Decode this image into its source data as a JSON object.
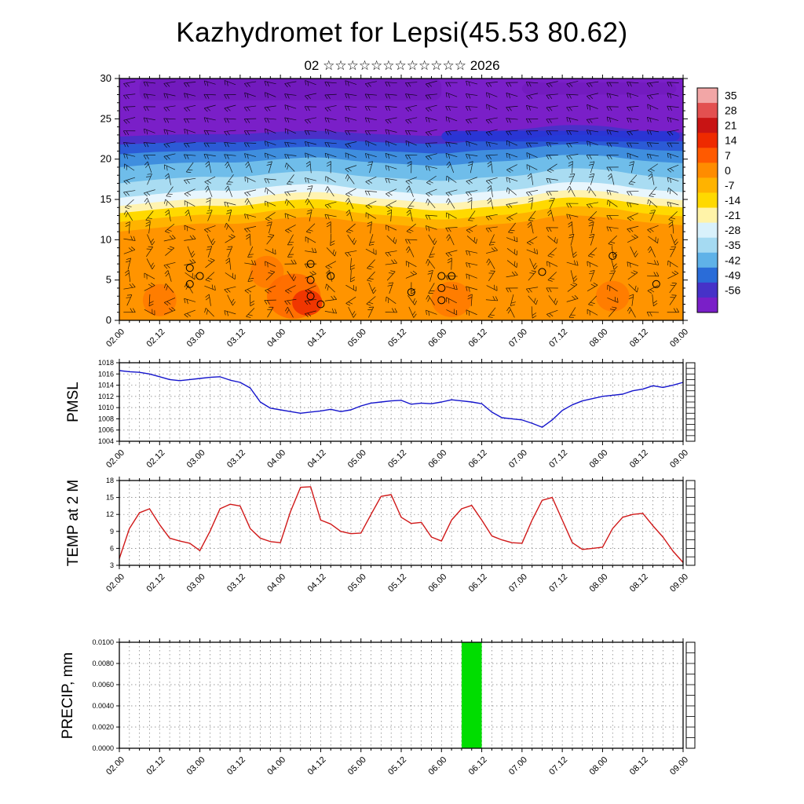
{
  "header": {
    "title": "Kazhydromet for Lepsi(45.53 80.62)",
    "subtitle": "02 ☆☆☆☆☆☆☆☆☆☆☆☆ 2026"
  },
  "time_axis": {
    "major_labels": [
      "02.00",
      "02.12",
      "03.00",
      "03.12",
      "04.00",
      "04.12",
      "05.00",
      "05.12",
      "06.00",
      "06.12",
      "07.00",
      "07.12",
      "08.00",
      "08.12",
      "09.00"
    ],
    "total_hours": 168,
    "major_step_hours": 12,
    "minor_step_hours": 3
  },
  "chart_data": [
    {
      "type": "heatmap",
      "name": "temp-wind-cross-section",
      "description": "Upper-air temperature cross-section (height 0-30) with wind barbs over time",
      "ylim": [
        0,
        30
      ],
      "yticks": [
        0,
        5,
        10,
        15,
        20,
        25,
        30
      ],
      "background_color": "#7A1FC8",
      "bands_top_to_bottom": [
        {
          "color": "#4B2FC8",
          "top_heights": [
            22.8,
            23.0,
            23.1,
            23.1,
            23.4,
            23.5,
            23.2,
            23.0,
            22.9,
            23.4,
            23.7,
            24.2,
            24.1,
            23.5,
            23.3
          ]
        },
        {
          "color": "#2B5BD6",
          "top_heights": [
            21.8,
            22.0,
            22.1,
            22.1,
            22.4,
            22.5,
            22.2,
            22.0,
            21.9,
            22.3,
            22.5,
            23.0,
            22.9,
            22.4,
            22.2
          ]
        },
        {
          "color": "#3F8EDE",
          "top_heights": [
            20.6,
            20.9,
            21.0,
            21.0,
            21.4,
            21.5,
            21.1,
            20.9,
            20.7,
            21.1,
            21.3,
            21.8,
            21.7,
            21.2,
            21.0
          ]
        },
        {
          "color": "#6FBDEA",
          "top_heights": [
            19.0,
            19.4,
            19.6,
            19.6,
            20.0,
            20.2,
            19.7,
            19.4,
            19.2,
            19.6,
            19.9,
            20.5,
            20.4,
            19.8,
            19.5
          ]
        },
        {
          "color": "#A9DCF2",
          "top_heights": [
            17.0,
            17.5,
            17.8,
            17.8,
            18.3,
            18.5,
            17.9,
            17.6,
            17.3,
            17.7,
            18.0,
            18.8,
            18.7,
            18.0,
            17.6
          ]
        },
        {
          "color": "#E8F6FD",
          "top_heights": [
            15.2,
            15.7,
            16.1,
            16.1,
            16.7,
            16.9,
            16.3,
            15.9,
            15.5,
            15.9,
            16.3,
            17.1,
            17.0,
            16.3,
            15.9
          ]
        },
        {
          "color": "#FFF3B0",
          "top_heights": [
            14.2,
            14.7,
            15.1,
            15.1,
            15.7,
            15.9,
            15.3,
            14.9,
            14.5,
            14.9,
            15.3,
            16.1,
            16.0,
            15.3,
            14.9
          ]
        },
        {
          "color": "#FFD900",
          "top_heights": [
            13.3,
            13.8,
            14.2,
            14.2,
            14.8,
            15.0,
            14.4,
            14.0,
            13.6,
            14.0,
            14.4,
            15.2,
            15.1,
            14.4,
            14.0
          ]
        },
        {
          "color": "#FFB300",
          "top_heights": [
            12.2,
            12.7,
            13.1,
            13.1,
            13.7,
            13.9,
            13.3,
            12.9,
            12.5,
            12.9,
            13.3,
            14.1,
            14.0,
            13.3,
            12.9
          ]
        },
        {
          "color": "#FF9400",
          "top_heights": [
            11.0,
            11.5,
            12.0,
            12.0,
            12.6,
            12.8,
            12.2,
            11.8,
            11.4,
            11.8,
            12.2,
            13.0,
            12.8,
            12.2,
            11.8
          ]
        }
      ],
      "overlays": [
        {
          "color": "#6A16B4",
          "t0": 6,
          "t1": 96,
          "h0": 27.3,
          "h1": 30,
          "opacity": 0.5
        },
        {
          "color": "#2336D6",
          "t0": 96,
          "t1": 167,
          "h0": 22.2,
          "h1": 23.5,
          "opacity": 0.85
        },
        {
          "color": "#6A16B4",
          "t0": 120,
          "t1": 166,
          "h0": 28,
          "h1": 29.5,
          "opacity": 0.45
        }
      ],
      "warm_cores": [
        {
          "t": 12,
          "h": 2.5,
          "rt": 5,
          "rh": 2.0,
          "color": "#FF7A00"
        },
        {
          "t": 44,
          "h": 6.0,
          "rt": 5,
          "rh": 2.0,
          "color": "#FF7A00"
        },
        {
          "t": 52,
          "h": 3.0,
          "rt": 8,
          "rh": 2.8,
          "color": "#FF6A00"
        },
        {
          "t": 56,
          "h": 2.2,
          "rt": 4.5,
          "rh": 1.6,
          "color": "#EE3000"
        },
        {
          "t": 99,
          "h": 2.6,
          "rt": 6,
          "rh": 2.2,
          "color": "#FF7A00"
        },
        {
          "t": 147,
          "h": 3.0,
          "rt": 5,
          "rh": 1.9,
          "color": "#FF7A00"
        }
      ],
      "calm_markers": [
        [
          21,
          6.5
        ],
        [
          21,
          4.5
        ],
        [
          24,
          5.5
        ],
        [
          57,
          7
        ],
        [
          57,
          5
        ],
        [
          57,
          3
        ],
        [
          60,
          2
        ],
        [
          63,
          5.5
        ],
        [
          87,
          3.5
        ],
        [
          96,
          5.5
        ],
        [
          96,
          4
        ],
        [
          96,
          2.5
        ],
        [
          99,
          5.5
        ],
        [
          126,
          6
        ],
        [
          147,
          8
        ],
        [
          160,
          4.5
        ]
      ],
      "colorbar": {
        "tick_labels": [
          "35",
          "28",
          "21",
          "14",
          "7",
          "0",
          "-7",
          "-14",
          "-21",
          "-28",
          "-35",
          "-42",
          "-49",
          "-56"
        ],
        "segment_colors_top_to_bottom": [
          "#F2A6A6",
          "#E35050",
          "#C81414",
          "#EE2A00",
          "#FF5A00",
          "#FF8C00",
          "#FFB300",
          "#FFD900",
          "#FFF3A8",
          "#D9F1FB",
          "#A5DAF2",
          "#5FB2E8",
          "#2A6CD8",
          "#4632C8",
          "#7A1FC8"
        ]
      }
    },
    {
      "type": "line",
      "name": "pmsl",
      "ylabel": "PMSL",
      "line_color": "#1414CC",
      "ylim": [
        1004,
        1018
      ],
      "yticks": [
        1004,
        1006,
        1008,
        1010,
        1012,
        1014,
        1016,
        1018
      ],
      "x_step_hours": 3,
      "values": [
        1016.6,
        1016.4,
        1016.3,
        1016.0,
        1015.5,
        1015.0,
        1014.8,
        1015.0,
        1015.2,
        1015.4,
        1015.5,
        1014.9,
        1014.5,
        1013.5,
        1011.0,
        1009.9,
        1009.6,
        1009.3,
        1009.0,
        1009.2,
        1009.4,
        1009.7,
        1009.3,
        1009.6,
        1010.3,
        1010.8,
        1011.0,
        1011.2,
        1011.3,
        1010.6,
        1010.8,
        1010.7,
        1011.0,
        1011.4,
        1011.2,
        1011.0,
        1010.7,
        1009.2,
        1008.2,
        1008.0,
        1007.8,
        1007.2,
        1006.5,
        1007.8,
        1009.5,
        1010.5,
        1011.2,
        1011.6,
        1012.0,
        1012.2,
        1012.4,
        1013.0,
        1013.3,
        1013.9,
        1013.6,
        1014.0,
        1014.5
      ]
    },
    {
      "type": "line",
      "name": "temp-2m",
      "ylabel": "TEMP at 2 M",
      "line_color": "#D01818",
      "ylim": [
        3,
        18
      ],
      "yticks": [
        3,
        6,
        9,
        12,
        15,
        18
      ],
      "x_step_hours": 3,
      "values": [
        4.2,
        9.5,
        12.3,
        13.0,
        10.2,
        7.8,
        7.3,
        6.9,
        5.6,
        9.0,
        13.0,
        13.8,
        13.5,
        9.5,
        7.8,
        7.2,
        7.0,
        12.5,
        16.8,
        16.9,
        11.0,
        10.3,
        9.0,
        8.6,
        8.7,
        12.0,
        15.2,
        15.5,
        11.5,
        10.4,
        10.6,
        8.0,
        7.3,
        11.0,
        13.0,
        13.6,
        11.0,
        8.2,
        7.5,
        7.0,
        6.9,
        11.0,
        14.5,
        15.0,
        11.0,
        7.0,
        5.8,
        6.0,
        6.2,
        9.5,
        11.5,
        12.0,
        12.2,
        10.0,
        8.0,
        5.5,
        3.5
      ]
    },
    {
      "type": "bar",
      "name": "precip",
      "ylabel": "PRECIP, mm",
      "bar_color": "#00DD00",
      "ylim": [
        0,
        0.01
      ],
      "ytick_labels": [
        "0.0000",
        "0.0020",
        "0.0040",
        "0.0060",
        "0.0080",
        "0.0100"
      ],
      "bars": [
        {
          "start_hour": 102,
          "end_hour": 108,
          "value": 0.01
        }
      ]
    }
  ]
}
